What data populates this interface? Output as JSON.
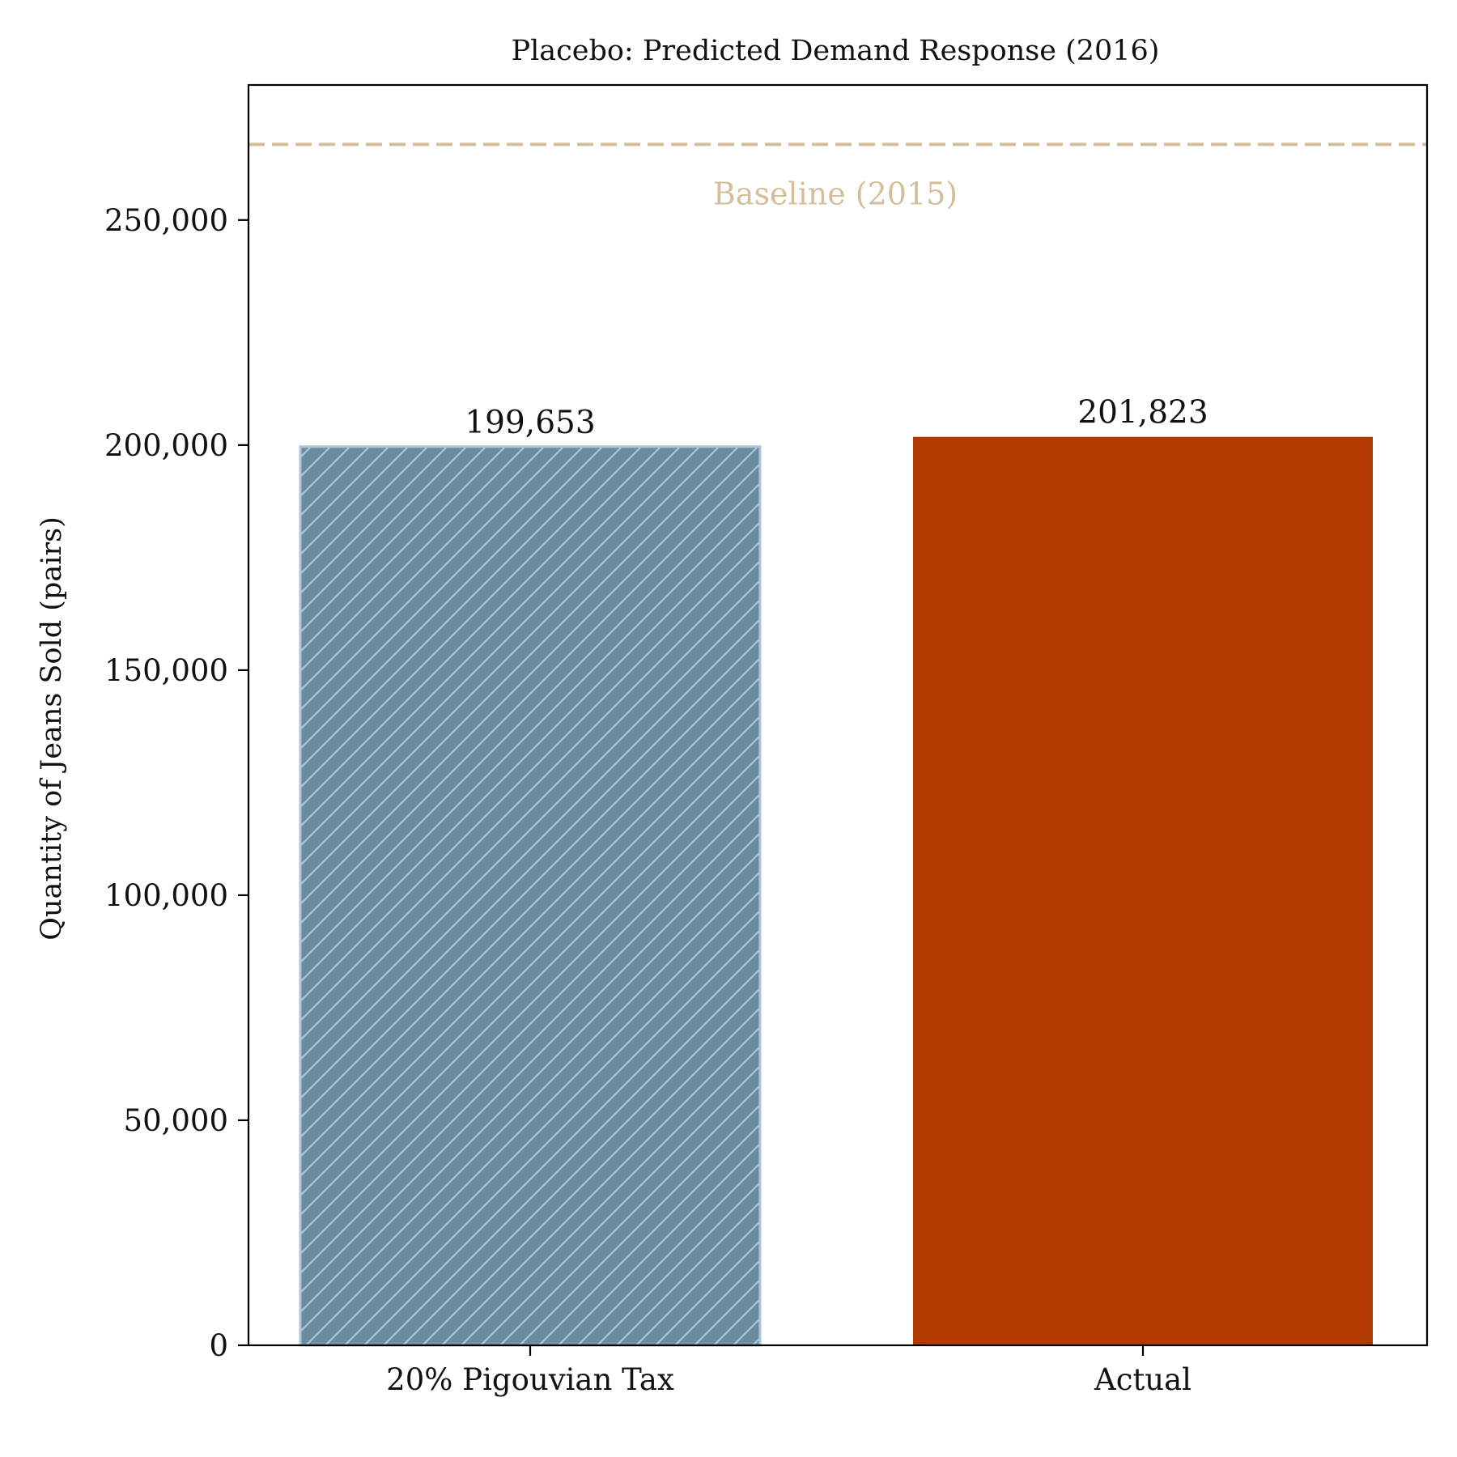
{
  "chart_data": {
    "type": "bar",
    "title": "Placebo: Predicted Demand Response (2016)",
    "xlabel": "",
    "ylabel": "Quantity of Jeans Sold (pairs)",
    "categories": [
      "20% Pigouvian Tax",
      "Actual"
    ],
    "values": [
      199653,
      201823
    ],
    "value_labels": [
      "199,653",
      "201,823"
    ],
    "ylim": [
      0,
      280000
    ],
    "yticks": [
      0,
      50000,
      100000,
      150000,
      200000,
      250000
    ],
    "ytick_labels": [
      "0",
      "50,000",
      "100,000",
      "150,000",
      "200,000",
      "250,000"
    ],
    "reference_line": {
      "label": "Baseline (2015)",
      "value": 266800,
      "style": "dashed"
    },
    "grid": false,
    "legend": "none",
    "colors": {
      "bar_tax_fill": "#6a8c9e",
      "bar_tax_hatch": "#b0c4de",
      "bar_tax_edge": "#b0c4de",
      "bar_actual_fill": "#b03a00",
      "baseline": "#d4bf9a",
      "axis": "#000000",
      "text": "#111111"
    }
  }
}
